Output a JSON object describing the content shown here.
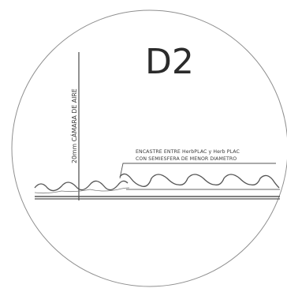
{
  "detail": {
    "label": "D2"
  },
  "air_gap": {
    "label": "20mm CÁMARA DE AIRE"
  },
  "callout": {
    "line1": "ENCASTRE ENTRE HerbPLAC y Herb PLAC",
    "line2": "CON SEMIESFERA DE MENOR DIAMETRO"
  },
  "colors": {
    "circle": "#8a8a8a",
    "lines": "#555555",
    "text": "#2b2b2b"
  }
}
